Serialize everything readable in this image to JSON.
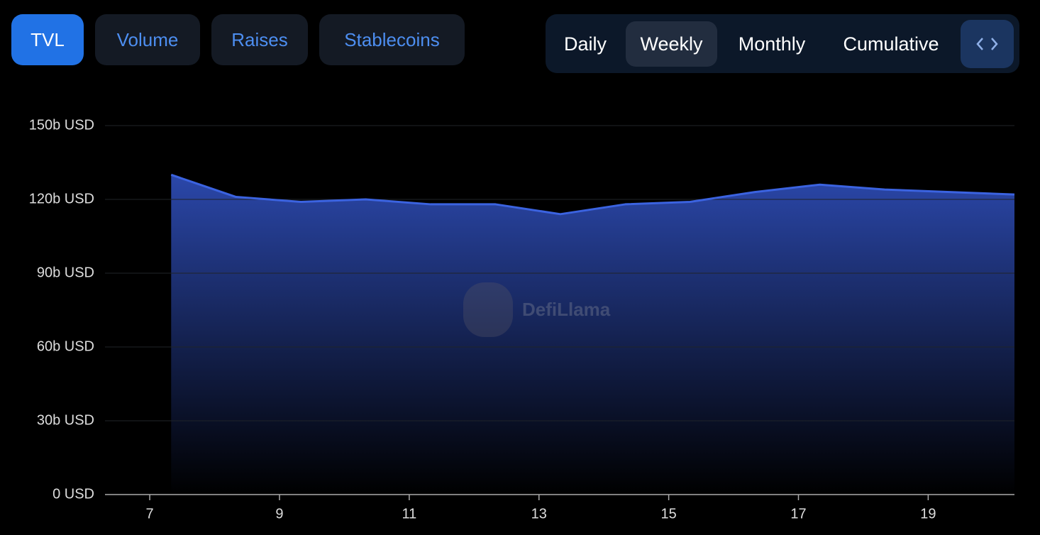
{
  "tabs": [
    "TVL",
    "Volume",
    "Raises",
    "Stablecoins"
  ],
  "periods": [
    "Daily",
    "Weekly",
    "Monthly",
    "Cumulative"
  ],
  "watermark": "DefiLlama",
  "chart_data": {
    "type": "area",
    "x": [
      7.33,
      8.33,
      9.33,
      10.33,
      11.33,
      12.33,
      13.33,
      14.33,
      15.33,
      16.33,
      17.33,
      18.33,
      19.33,
      20.33
    ],
    "series": [
      {
        "name": "TVL",
        "color": "#3b63e0",
        "values": [
          130,
          121,
          119,
          120,
          118,
          118,
          114,
          118,
          119,
          123,
          126,
          124,
          123,
          122
        ]
      }
    ],
    "xlim": [
      6.31,
      20.33
    ],
    "xticks": [
      7,
      9,
      11,
      13,
      15,
      17,
      19
    ],
    "ylim": [
      0,
      150
    ],
    "yticks": [
      {
        "value": 0,
        "label": "0 USD"
      },
      {
        "value": 30,
        "label": "30b USD"
      },
      {
        "value": 60,
        "label": "60b USD"
      },
      {
        "value": 90,
        "label": "90b USD"
      },
      {
        "value": 120,
        "label": "120b USD"
      },
      {
        "value": 150,
        "label": "150b USD"
      }
    ],
    "grid": true
  }
}
